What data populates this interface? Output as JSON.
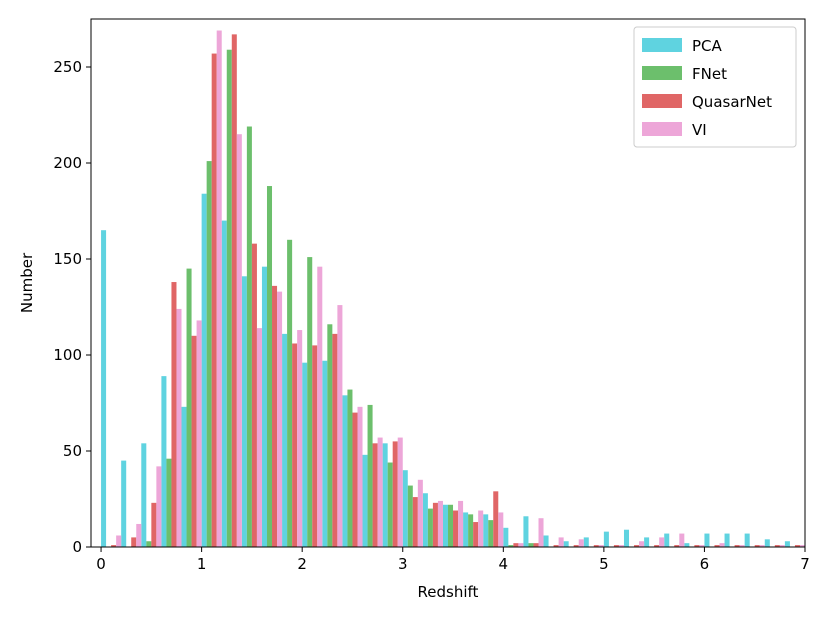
{
  "chart_data": {
    "type": "bar",
    "title": "",
    "xlabel": "Redshift",
    "ylabel": "Number",
    "xlim": [
      -0.1,
      7.0
    ],
    "ylim": [
      0,
      275
    ],
    "xticks": [
      0,
      1,
      2,
      3,
      4,
      5,
      6,
      7
    ],
    "yticks": [
      0,
      50,
      100,
      150,
      200,
      250
    ],
    "bin_width": 0.2,
    "x": [
      0.0,
      0.2,
      0.4,
      0.6,
      0.8,
      1.0,
      1.2,
      1.4,
      1.6,
      1.8,
      2.0,
      2.2,
      2.4,
      2.6,
      2.8,
      3.0,
      3.2,
      3.4,
      3.6,
      3.8,
      4.0,
      4.2,
      4.4,
      4.6,
      4.8,
      5.0,
      5.2,
      5.4,
      5.6,
      5.8,
      6.0,
      6.2,
      6.4,
      6.6,
      6.8
    ],
    "legend_position": "top-right",
    "grid": false,
    "series": [
      {
        "name": "PCA",
        "color": "#5fd3e0",
        "values": [
          165,
          45,
          54,
          89,
          73,
          184,
          170,
          141,
          146,
          111,
          96,
          97,
          79,
          48,
          54,
          40,
          28,
          22,
          18,
          17,
          10,
          16,
          6,
          3,
          5,
          8,
          9,
          5,
          7,
          2,
          7,
          7,
          7,
          4,
          3
        ]
      },
      {
        "name": "FNet",
        "color": "#6cbf6c",
        "values": [
          0,
          0,
          3,
          46,
          145,
          201,
          259,
          219,
          188,
          160,
          151,
          116,
          82,
          74,
          44,
          32,
          20,
          22,
          17,
          14,
          1,
          2,
          0,
          0,
          0,
          0,
          0,
          0,
          0,
          0,
          0,
          0,
          0,
          0,
          0
        ]
      },
      {
        "name": "QuasarNet",
        "color": "#e06666",
        "values": [
          1,
          5,
          23,
          138,
          110,
          257,
          267,
          158,
          136,
          106,
          105,
          111,
          70,
          54,
          55,
          26,
          23,
          19,
          13,
          29,
          2,
          2,
          1,
          1,
          1,
          1,
          1,
          1,
          1,
          1,
          1,
          1,
          1,
          1,
          1
        ]
      },
      {
        "name": "VI",
        "color": "#eda6d8",
        "values": [
          6,
          12,
          42,
          124,
          118,
          269,
          215,
          114,
          133,
          113,
          146,
          126,
          73,
          57,
          57,
          35,
          24,
          24,
          19,
          18,
          2,
          15,
          5,
          4,
          1,
          1,
          3,
          5,
          7,
          1,
          2,
          1,
          1,
          1,
          1
        ]
      }
    ]
  }
}
